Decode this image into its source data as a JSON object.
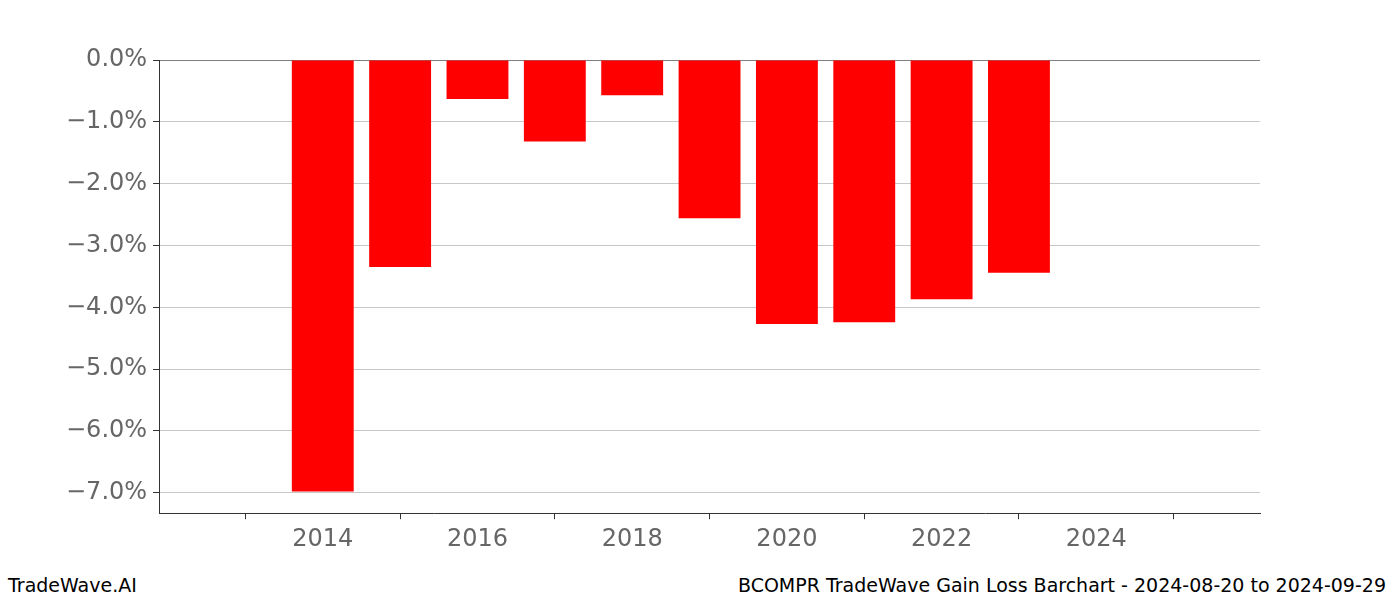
{
  "chart_data": {
    "type": "bar",
    "annotations": [
      "TradeWave.AI",
      "BCOMPR TradeWave Gain Loss Barchart - 2024-08-20 to 2024-09-29"
    ],
    "x": [
      2014,
      2015,
      2016,
      2017,
      2018,
      2019,
      2020,
      2021,
      2022,
      2023
    ],
    "values": [
      -6.98,
      -3.35,
      -0.63,
      -1.32,
      -0.57,
      -2.56,
      -4.27,
      -4.24,
      -3.87,
      -3.44
    ],
    "color": "#ff0000",
    "xlim": [
      2013.07,
      2024.93
    ],
    "xticks": [
      2014,
      2016,
      2018,
      2020,
      2022,
      2024
    ],
    "ylim": [
      -7.33,
      0
    ],
    "yticks": [
      {
        "value": -7,
        "label": "−7.0%"
      },
      {
        "value": -6,
        "label": "−6.0%"
      },
      {
        "value": -5,
        "label": "−5.0%"
      },
      {
        "value": -4,
        "label": "−4.0%"
      },
      {
        "value": -3,
        "label": "−3.0%"
      },
      {
        "value": -2,
        "label": "−2.0%"
      },
      {
        "value": -1,
        "label": "−1.0%"
      },
      {
        "value": 0,
        "label": "0.0%"
      }
    ],
    "grid": true
  }
}
